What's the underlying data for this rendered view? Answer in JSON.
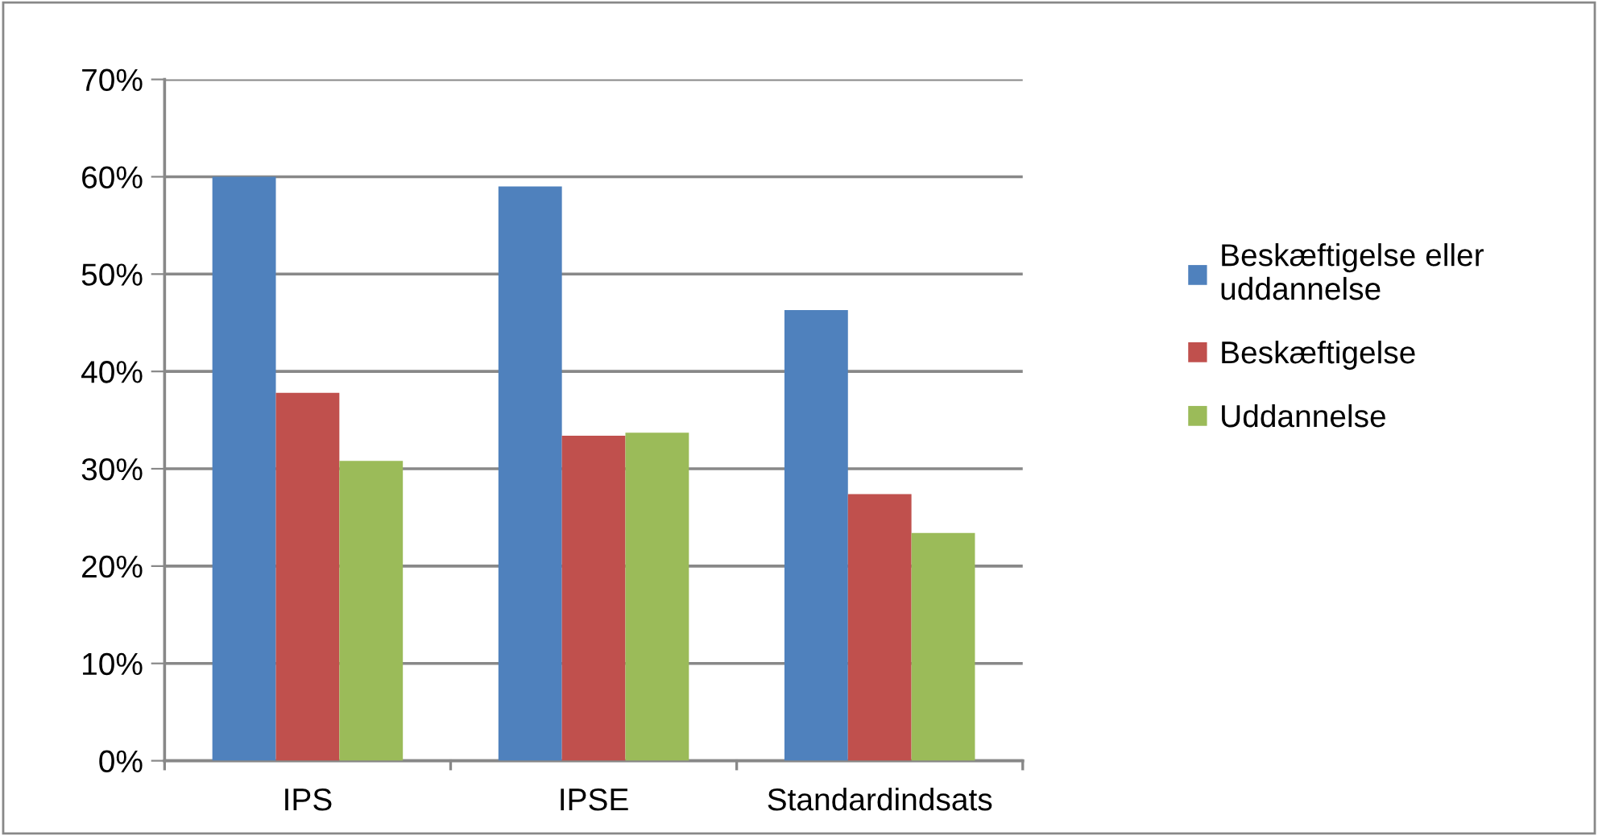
{
  "chart_data": {
    "type": "bar",
    "categories": [
      "IPS",
      "IPSE",
      "Standardindsats"
    ],
    "series": [
      {
        "name": "Beskæftigelse eller uddannelse",
        "color": "#4f81bd",
        "values": [
          60.0,
          59.0,
          46.3
        ]
      },
      {
        "name": "Beskæftigelse",
        "color": "#c0504d",
        "values": [
          37.8,
          33.4,
          27.4
        ]
      },
      {
        "name": "Uddannelse",
        "color": "#9bbb59",
        "values": [
          30.8,
          33.7,
          23.4
        ]
      }
    ],
    "ylim": [
      0,
      70
    ],
    "yticks": [
      {
        "value": 0,
        "label": "0%"
      },
      {
        "value": 10,
        "label": "10%"
      },
      {
        "value": 20,
        "label": "20%"
      },
      {
        "value": 30,
        "label": "30%"
      },
      {
        "value": 40,
        "label": "40%"
      },
      {
        "value": 50,
        "label": "50%"
      },
      {
        "value": 60,
        "label": "60%"
      },
      {
        "value": 70,
        "label": "70%"
      }
    ],
    "grid": "y",
    "legend": "right"
  }
}
